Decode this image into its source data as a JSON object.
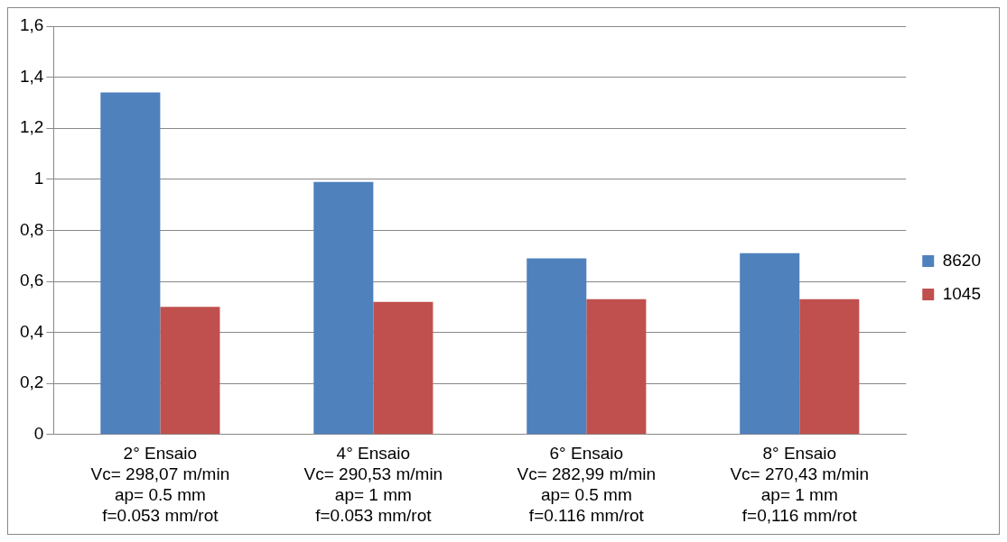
{
  "chart_data": {
    "type": "bar",
    "categories": [
      "2° Ensaio\nVc= 298,07 m/min\nap= 0.5 mm\nf=0.053 mm/rot",
      "4° Ensaio\nVc= 290,53 m/min\nap= 1 mm\nf=0.053 mm/rot",
      "6° Ensaio\nVc= 282,99 m/min\nap= 0.5 mm\nf=0.116 mm/rot",
      "8° Ensaio\nVc= 270,43 m/min\nap= 1 mm\nf=0,116 mm/rot"
    ],
    "series": [
      {
        "name": "8620",
        "color": "#4f81bd",
        "values": [
          1.34,
          0.99,
          0.69,
          0.71
        ]
      },
      {
        "name": "1045",
        "color": "#c0504d",
        "values": [
          0.5,
          0.52,
          0.53,
          0.53
        ]
      }
    ],
    "ylim": [
      0,
      1.6
    ],
    "yticks": [
      {
        "value": 0,
        "label": "0"
      },
      {
        "value": 0.2,
        "label": "0,2"
      },
      {
        "value": 0.4,
        "label": "0,4"
      },
      {
        "value": 0.6,
        "label": "0,6"
      },
      {
        "value": 0.8,
        "label": "0,8"
      },
      {
        "value": 1,
        "label": "1"
      },
      {
        "value": 1.2,
        "label": "1,2"
      },
      {
        "value": 1.4,
        "label": "1,4"
      },
      {
        "value": 1.6,
        "label": "1,6"
      }
    ],
    "grid": "y",
    "legend": "right"
  }
}
